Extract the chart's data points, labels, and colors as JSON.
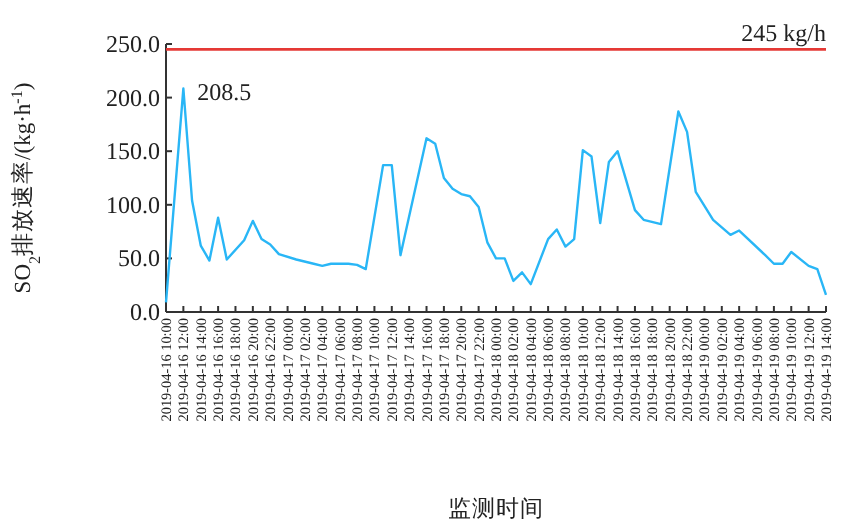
{
  "chart_data": {
    "type": "line",
    "xlabel": "监测时间",
    "ylabel": "SO$_{2}$排放速率/(kg·h$^{-1}$)",
    "x": [
      "2019-04-16T10:00",
      "2019-04-16T12:00",
      "2019-04-16T13:00",
      "2019-04-16T14:00",
      "2019-04-16T15:00",
      "2019-04-16T16:00",
      "2019-04-16T17:00",
      "2019-04-16T19:00",
      "2019-04-16T20:00",
      "2019-04-16T21:00",
      "2019-04-16T22:00",
      "2019-04-16T23:00",
      "2019-04-17T01:00",
      "2019-04-17T03:00",
      "2019-04-17T04:00",
      "2019-04-17T05:00",
      "2019-04-17T07:00",
      "2019-04-17T08:00",
      "2019-04-17T09:00",
      "2019-04-17T11:00",
      "2019-04-17T12:00",
      "2019-04-17T13:00",
      "2019-04-17T16:00",
      "2019-04-17T17:00",
      "2019-04-17T18:00",
      "2019-04-17T19:00",
      "2019-04-17T20:00",
      "2019-04-17T21:00",
      "2019-04-17T22:00",
      "2019-04-17T23:00",
      "2019-04-18T00:00",
      "2019-04-18T01:00",
      "2019-04-18T02:00",
      "2019-04-18T03:00",
      "2019-04-18T04:00",
      "2019-04-18T06:00",
      "2019-04-18T07:00",
      "2019-04-18T08:00",
      "2019-04-18T09:00",
      "2019-04-18T10:00",
      "2019-04-18T11:00",
      "2019-04-18T12:00",
      "2019-04-18T13:00",
      "2019-04-18T14:00",
      "2019-04-18T16:00",
      "2019-04-18T17:00",
      "2019-04-18T19:00",
      "2019-04-18T21:00",
      "2019-04-18T22:00",
      "2019-04-18T23:00",
      "2019-04-19T01:00",
      "2019-04-19T03:00",
      "2019-04-19T04:00",
      "2019-04-19T07:00",
      "2019-04-19T08:00",
      "2019-04-19T09:00",
      "2019-04-19T10:00",
      "2019-04-19T12:00",
      "2019-04-19T13:00",
      "2019-04-19T14:00"
    ],
    "series": [
      {
        "color": "#29b6f6",
        "values": [
          9,
          208.5,
          104,
          62,
          48,
          88,
          49,
          67,
          85,
          68,
          63,
          54,
          49,
          45,
          43,
          45,
          45,
          44,
          40,
          137,
          137,
          53,
          162,
          157,
          125,
          115,
          110,
          108,
          98,
          65,
          50,
          50,
          29,
          37,
          26,
          68,
          77,
          61,
          68,
          151,
          145,
          83,
          140,
          150,
          95,
          86,
          82,
          187,
          168,
          112,
          86,
          72,
          76,
          53,
          45,
          45,
          56,
          43,
          40,
          16
        ]
      }
    ],
    "xlim": [
      "2019-04-16T10:00",
      "2019-04-19T14:00"
    ],
    "ylim": [
      0,
      250
    ],
    "xticks": [
      {
        "value": "2019-04-16T10:00",
        "label": "2019-04-16 10:00"
      },
      {
        "value": "2019-04-16T12:00",
        "label": "2019-04-16 12:00"
      },
      {
        "value": "2019-04-16T14:00",
        "label": "2019-04-16 14:00"
      },
      {
        "value": "2019-04-16T16:00",
        "label": "2019-04-16 16:00"
      },
      {
        "value": "2019-04-16T18:00",
        "label": "2019-04-16 18:00"
      },
      {
        "value": "2019-04-16T20:00",
        "label": "2019-04-16 20:00"
      },
      {
        "value": "2019-04-16T22:00",
        "label": "2019-04-16 22:00"
      },
      {
        "value": "2019-04-17T00:00",
        "label": "2019-04-17 00:00"
      },
      {
        "value": "2019-04-17T02:00",
        "label": "2019-04-17 02:00"
      },
      {
        "value": "2019-04-17T04:00",
        "label": "2019-04-17 04:00"
      },
      {
        "value": "2019-04-17T06:00",
        "label": "2019-04-17 06:00"
      },
      {
        "value": "2019-04-17T08:00",
        "label": "2019-04-17 08:00"
      },
      {
        "value": "2019-04-17T10:00",
        "label": "2019-04-17 10:00"
      },
      {
        "value": "2019-04-17T12:00",
        "label": "2019-04-17 12:00"
      },
      {
        "value": "2019-04-17T14:00",
        "label": "2019-04-17 14:00"
      },
      {
        "value": "2019-04-17T16:00",
        "label": "2019-04-17 16:00"
      },
      {
        "value": "2019-04-17T18:00",
        "label": "2019-04-17 18:00"
      },
      {
        "value": "2019-04-17T20:00",
        "label": "2019-04-17 20:00"
      },
      {
        "value": "2019-04-17T22:00",
        "label": "2019-04-17 22:00"
      },
      {
        "value": "2019-04-18T00:00",
        "label": "2019-04-18 00:00"
      },
      {
        "value": "2019-04-18T02:00",
        "label": "2019-04-18 02:00"
      },
      {
        "value": "2019-04-18T04:00",
        "label": "2019-04-18 04:00"
      },
      {
        "value": "2019-04-18T06:00",
        "label": "2019-04-18 06:00"
      },
      {
        "value": "2019-04-18T08:00",
        "label": "2019-04-18 08:00"
      },
      {
        "value": "2019-04-18T10:00",
        "label": "2019-04-18 10:00"
      },
      {
        "value": "2019-04-18T12:00",
        "label": "2019-04-18 12:00"
      },
      {
        "value": "2019-04-18T14:00",
        "label": "2019-04-18 14:00"
      },
      {
        "value": "2019-04-18T16:00",
        "label": "2019-04-18 16:00"
      },
      {
        "value": "2019-04-18T18:00",
        "label": "2019-04-18 18:00"
      },
      {
        "value": "2019-04-18T20:00",
        "label": "2019-04-18 20:00"
      },
      {
        "value": "2019-04-18T22:00",
        "label": "2019-04-18 22:00"
      },
      {
        "value": "2019-04-19T00:00",
        "label": "2019-04-19 00:00"
      },
      {
        "value": "2019-04-19T02:00",
        "label": "2019-04-19 02:00"
      },
      {
        "value": "2019-04-19T04:00",
        "label": "2019-04-19 04:00"
      },
      {
        "value": "2019-04-19T06:00",
        "label": "2019-04-19 06:00"
      },
      {
        "value": "2019-04-19T08:00",
        "label": "2019-04-19 08:00"
      },
      {
        "value": "2019-04-19T10:00",
        "label": "2019-04-19 10:00"
      },
      {
        "value": "2019-04-19T12:00",
        "label": "2019-04-19 12:00"
      },
      {
        "value": "2019-04-19T14:00",
        "label": "2019-04-19 14:00"
      }
    ],
    "yticks": [
      {
        "value": 0,
        "label": "0.0"
      },
      {
        "value": 50,
        "label": "50.0"
      },
      {
        "value": 100,
        "label": "100.0"
      },
      {
        "value": 150,
        "label": "150.0"
      },
      {
        "value": 200,
        "label": "200.0"
      },
      {
        "value": 250,
        "label": "250.0"
      }
    ],
    "ref_lines": [
      {
        "axis": "y",
        "value": 245,
        "label": "245 kg/h",
        "color": "#e53935"
      }
    ],
    "annotations": [
      {
        "text": "208.5",
        "x": "2019-04-16T12:00",
        "y": 208.5
      }
    ],
    "grid": false,
    "marker": "none",
    "line_style": "solid"
  }
}
